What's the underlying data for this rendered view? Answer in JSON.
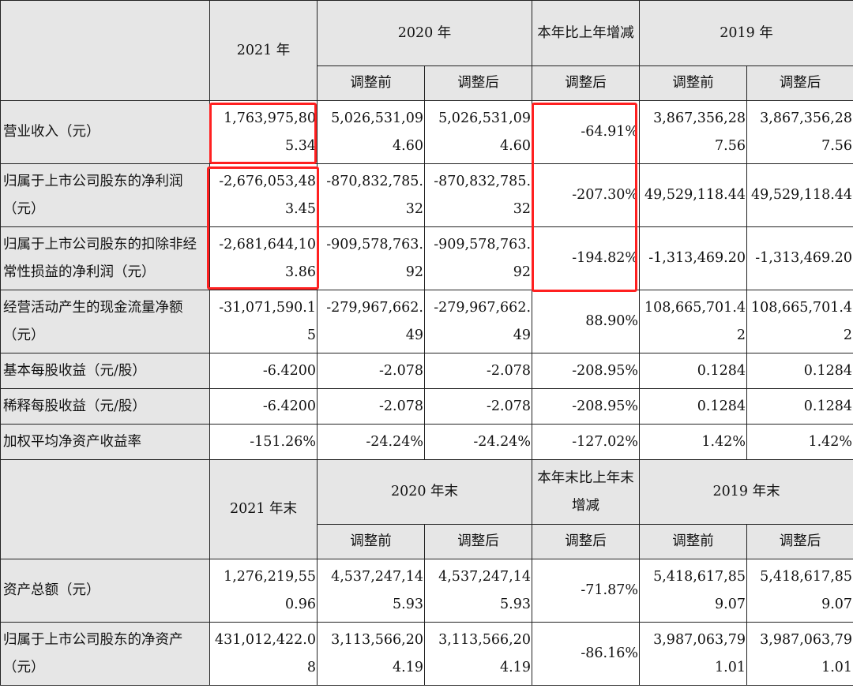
{
  "header1": {
    "y2021": "2021 年",
    "y2020": "2020 年",
    "change": "本年比上年增减",
    "y2019": "2019 年",
    "before": "调整前",
    "after": "调整后",
    "change_sub": "调整后",
    "before2019": "调整前",
    "after2019": "调整后"
  },
  "rows1": [
    {
      "label": "营业收入（元）",
      "v2021": "1,763,975,805.34",
      "v2020b": "5,026,531,094.60",
      "v2020a": "5,026,531,094.60",
      "chg": "-64.91%",
      "v2019b": "3,867,356,287.56",
      "v2019a": "3,867,356,287.56"
    },
    {
      "label": "归属于上市公司股东的净利润（元）",
      "v2021": "-2,676,053,483.45",
      "v2020b": "-870,832,785.32",
      "v2020a": "-870,832,785.32",
      "chg": "-207.30%",
      "v2019b": "49,529,118.44",
      "v2019a": "49,529,118.44"
    },
    {
      "label": "归属于上市公司股东的扣除非经常性损益的净利润（元）",
      "v2021": "-2,681,644,103.86",
      "v2020b": "-909,578,763.92",
      "v2020a": "-909,578,763.92",
      "chg": "-194.82%",
      "v2019b": "-1,313,469.20",
      "v2019a": "-1,313,469.20"
    },
    {
      "label": "经营活动产生的现金流量净额（元）",
      "v2021": "-31,071,590.15",
      "v2020b": "-279,967,662.49",
      "v2020a": "-279,967,662.49",
      "chg": "88.90%",
      "v2019b": "108,665,701.42",
      "v2019a": "108,665,701.42"
    },
    {
      "label": "基本每股收益（元/股）",
      "v2021": "-6.4200",
      "v2020b": "-2.078",
      "v2020a": "-2.078",
      "chg": "-208.95%",
      "v2019b": "0.1284",
      "v2019a": "0.1284"
    },
    {
      "label": "稀释每股收益（元/股）",
      "v2021": "-6.4200",
      "v2020b": "-2.078",
      "v2020a": "-2.078",
      "chg": "-208.95%",
      "v2019b": "0.1284",
      "v2019a": "0.1284"
    },
    {
      "label": "加权平均净资产收益率",
      "v2021": "-151.26%",
      "v2020b": "-24.24%",
      "v2020a": "-24.24%",
      "chg": "-127.02%",
      "v2019b": "1.42%",
      "v2019a": "1.42%"
    }
  ],
  "header2": {
    "y2021": "2021 年末",
    "y2020": "2020 年末",
    "change": "本年末比上年末增减",
    "y2019": "2019 年末",
    "before": "调整前",
    "after": "调整后",
    "change_sub": "调整后",
    "before2019": "调整前",
    "after2019": "调整后"
  },
  "rows2": [
    {
      "label": "资产总额（元）",
      "v2021": "1,276,219,550.96",
      "v2020b": "4,537,247,145.93",
      "v2020a": "4,537,247,145.93",
      "chg": "-71.87%",
      "v2019b": "5,418,617,859.07",
      "v2019a": "5,418,617,859.07"
    },
    {
      "label": "归属于上市公司股东的净资产（元）",
      "v2021": "431,012,422.08",
      "v2020b": "3,113,566,204.19",
      "v2020a": "3,113,566,204.19",
      "chg": "-86.16%",
      "v2019b": "3,987,063,791.01",
      "v2019a": "3,987,063,791.01"
    }
  ]
}
